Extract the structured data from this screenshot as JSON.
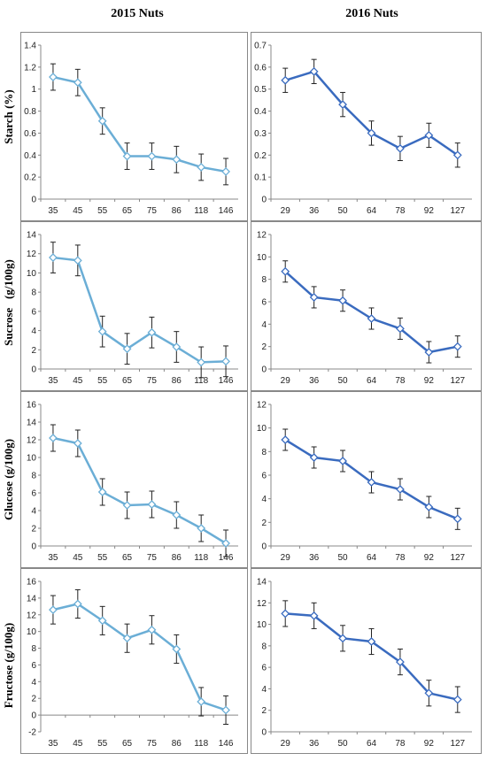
{
  "headers": {
    "left": "2015 Nuts",
    "right": "2016 Nuts"
  },
  "row_labels": [
    "Starch (%)",
    "Sucrose   (g/100g)",
    "Glucose (g/100g)",
    "Fructose (g/100g)"
  ],
  "colors": {
    "series_2015": "#6BAED6",
    "series_2016": "#3A6BBF",
    "error_bar": "#222222",
    "marker_fill": "#FFFFFF"
  },
  "chart_data": [
    {
      "type": "line",
      "ylabel": "Starch (%)",
      "year": "2015",
      "categories": [
        "35",
        "45",
        "55",
        "65",
        "75",
        "86",
        "118",
        "146"
      ],
      "values": [
        1.11,
        1.06,
        0.71,
        0.39,
        0.39,
        0.36,
        0.29,
        0.25
      ],
      "error": [
        0.12,
        0.12,
        0.12,
        0.12,
        0.12,
        0.12,
        0.12,
        0.12
      ],
      "ylim": [
        0,
        1.4
      ],
      "yticks": [
        "0",
        "0.2",
        "0.4",
        "0.6",
        "0.8",
        "1",
        "1.2",
        "1.4"
      ]
    },
    {
      "type": "line",
      "ylabel": "",
      "year": "2016",
      "categories": [
        "29",
        "36",
        "50",
        "64",
        "78",
        "92",
        "127"
      ],
      "values": [
        0.54,
        0.58,
        0.43,
        0.3,
        0.23,
        0.29,
        0.2
      ],
      "error": [
        0.055,
        0.055,
        0.055,
        0.055,
        0.055,
        0.055,
        0.055
      ],
      "ylim": [
        0,
        0.7
      ],
      "yticks": [
        "0",
        "0.1",
        "0.2",
        "0.3",
        "0.4",
        "0.5",
        "0.6",
        "0.7"
      ]
    },
    {
      "type": "line",
      "ylabel": "Sucrose (g/100g)",
      "year": "2015",
      "categories": [
        "35",
        "45",
        "55",
        "65",
        "75",
        "86",
        "118",
        "146"
      ],
      "values": [
        11.6,
        11.3,
        3.9,
        2.1,
        3.8,
        2.3,
        0.7,
        0.8
      ],
      "error": [
        1.6,
        1.6,
        1.6,
        1.6,
        1.6,
        1.6,
        1.6,
        1.6
      ],
      "ylim": [
        0,
        14
      ],
      "yticks": [
        "0",
        "2",
        "4",
        "6",
        "8",
        "10",
        "12",
        "14"
      ]
    },
    {
      "type": "line",
      "ylabel": "",
      "year": "2016",
      "categories": [
        "29",
        "36",
        "50",
        "64",
        "78",
        "92",
        "127"
      ],
      "values": [
        8.7,
        6.4,
        6.1,
        4.5,
        3.6,
        1.5,
        2.0
      ],
      "error": [
        0.95,
        0.95,
        0.95,
        0.95,
        0.95,
        0.95,
        0.95
      ],
      "ylim": [
        0,
        12
      ],
      "yticks": [
        "0",
        "2",
        "4",
        "6",
        "8",
        "10",
        "12"
      ]
    },
    {
      "type": "line",
      "ylabel": "Glucose (g/100g)",
      "year": "2015",
      "categories": [
        "35",
        "45",
        "55",
        "65",
        "75",
        "86",
        "118",
        "146"
      ],
      "values": [
        12.2,
        11.6,
        6.1,
        4.6,
        4.7,
        3.5,
        2.0,
        0.3
      ],
      "error": [
        1.5,
        1.5,
        1.5,
        1.5,
        1.5,
        1.5,
        1.5,
        1.5
      ],
      "ylim": [
        0,
        16
      ],
      "yticks": [
        "0",
        "2",
        "4",
        "6",
        "8",
        "10",
        "12",
        "14",
        "16"
      ]
    },
    {
      "type": "line",
      "ylabel": "",
      "year": "2016",
      "categories": [
        "29",
        "36",
        "50",
        "64",
        "78",
        "92",
        "127"
      ],
      "values": [
        9.0,
        7.5,
        7.2,
        5.4,
        4.8,
        3.3,
        2.3
      ],
      "error": [
        0.9,
        0.9,
        0.9,
        0.9,
        0.9,
        0.9,
        0.9
      ],
      "ylim": [
        0,
        12
      ],
      "yticks": [
        "0",
        "2",
        "4",
        "6",
        "8",
        "10",
        "12"
      ]
    },
    {
      "type": "line",
      "ylabel": "Fructose (g/100g)",
      "year": "2015",
      "categories": [
        "35",
        "45",
        "55",
        "65",
        "75",
        "86",
        "118",
        "146"
      ],
      "values": [
        12.6,
        13.3,
        11.3,
        9.2,
        10.2,
        7.9,
        1.6,
        0.6
      ],
      "error": [
        1.7,
        1.7,
        1.7,
        1.7,
        1.7,
        1.7,
        1.7,
        1.7
      ],
      "ylim": [
        -2,
        16
      ],
      "yticks": [
        "-2",
        "0",
        "2",
        "4",
        "6",
        "8",
        "10",
        "12",
        "14",
        "16"
      ]
    },
    {
      "type": "line",
      "ylabel": "",
      "year": "2016",
      "categories": [
        "29",
        "36",
        "50",
        "64",
        "78",
        "92",
        "127"
      ],
      "values": [
        11.0,
        10.8,
        8.7,
        8.4,
        6.5,
        3.6,
        3.0
      ],
      "error": [
        1.2,
        1.2,
        1.2,
        1.2,
        1.2,
        1.2,
        1.2
      ],
      "ylim": [
        0,
        14
      ],
      "yticks": [
        "0",
        "2",
        "4",
        "6",
        "8",
        "10",
        "12",
        "14"
      ]
    }
  ]
}
